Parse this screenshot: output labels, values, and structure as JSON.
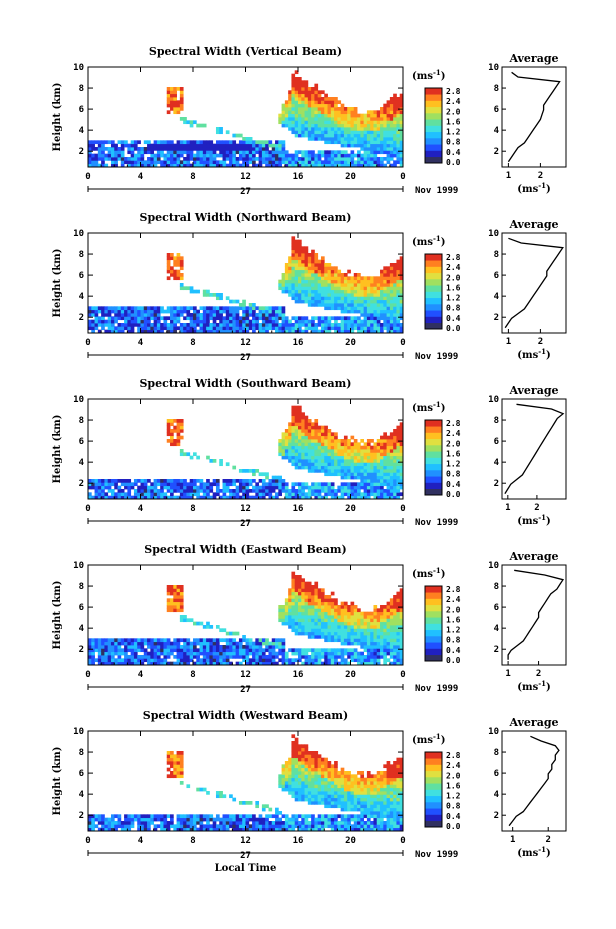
{
  "chart_data": {
    "type": "heatmap",
    "panels": [
      {
        "title": "Spectral Width (Vertical Beam)",
        "avg_profile_x": [
          1.0,
          1.1,
          1.2,
          1.3,
          1.5,
          1.6,
          1.7,
          1.8,
          1.9,
          2.0,
          2.05,
          2.1,
          2.1,
          2.2,
          2.3,
          2.4,
          2.5,
          2.6,
          1.3,
          1.1
        ],
        "avg_xticks": [
          "1",
          "2"
        ],
        "avg_xlim": [
          0.8,
          2.8
        ]
      },
      {
        "title": "Spectral Width (Northward Beam)",
        "avg_profile_x": [
          0.9,
          1.0,
          1.1,
          1.3,
          1.5,
          1.6,
          1.7,
          1.8,
          1.9,
          2.0,
          2.1,
          2.2,
          2.2,
          2.3,
          2.4,
          2.5,
          2.6,
          2.7,
          1.4,
          1.0
        ],
        "avg_xticks": [
          "1",
          "2"
        ],
        "avg_xlim": [
          0.8,
          2.8
        ]
      },
      {
        "title": "Spectral Width (Southward Beam)",
        "avg_profile_x": [
          0.9,
          1.0,
          1.1,
          1.3,
          1.5,
          1.6,
          1.7,
          1.8,
          1.9,
          2.0,
          2.1,
          2.2,
          2.3,
          2.4,
          2.5,
          2.6,
          2.7,
          2.9,
          2.5,
          1.3
        ],
        "avg_xticks": [
          "1",
          "2"
        ],
        "avg_xlim": [
          0.8,
          3.0
        ]
      },
      {
        "title": "Spectral Width (Eastward Beam)",
        "avg_profile_x": [
          1.0,
          1.0,
          1.1,
          1.3,
          1.5,
          1.6,
          1.7,
          1.8,
          1.9,
          2.0,
          2.0,
          2.1,
          2.2,
          2.3,
          2.4,
          2.6,
          2.7,
          2.8,
          2.2,
          1.2
        ],
        "avg_xticks": [
          "1",
          "2"
        ],
        "avg_xlim": [
          0.8,
          2.9
        ]
      },
      {
        "title": "Spectral Width (Westward Beam)",
        "avg_profile_x": [
          0.9,
          1.0,
          1.1,
          1.3,
          1.4,
          1.5,
          1.6,
          1.7,
          1.8,
          1.9,
          2.0,
          2.0,
          2.1,
          2.1,
          2.2,
          2.2,
          2.3,
          2.2,
          1.8,
          1.5
        ],
        "avg_xticks": [
          "1",
          "2"
        ],
        "avg_xlim": [
          0.7,
          2.5
        ]
      }
    ],
    "ylabel": "Height (km)",
    "ylim": [
      0.5,
      10
    ],
    "yticks": [
      "2",
      "4",
      "6",
      "8",
      "10"
    ],
    "xticks": [
      "0",
      "4",
      "8",
      "12",
      "16",
      "20",
      "0"
    ],
    "xlim": [
      0,
      24
    ],
    "date_day": "27",
    "date_month": "Nov 1999",
    "xlabel": "Local Time",
    "colorbar": {
      "unit": "(ms-1)",
      "ticks": [
        "2.8",
        "2.4",
        "2.0",
        "1.6",
        "1.2",
        "0.8",
        "0.4",
        "0.0"
      ],
      "range": [
        0.0,
        2.8
      ],
      "colors": [
        "#303060",
        "#2020c0",
        "#2050ff",
        "#2090ff",
        "#20c0ff",
        "#40e0e0",
        "#60e0a0",
        "#a0e060",
        "#e0e040",
        "#ffc020",
        "#ff8020",
        "#e03020"
      ]
    },
    "average_title": "Average",
    "average_unit": "(ms-1)"
  }
}
